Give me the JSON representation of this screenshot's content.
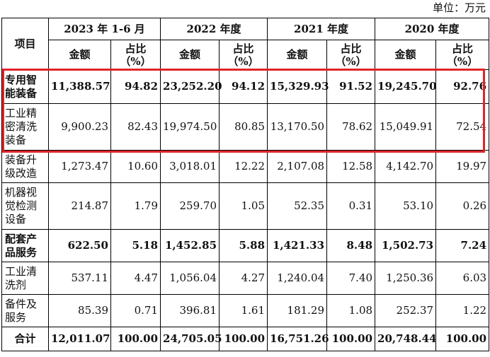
{
  "unit_label": "单位：万元",
  "header": {
    "item_label": "项目",
    "periods": [
      "2023 年 1-6 月",
      "2022 年度",
      "2021 年度",
      "2020 年度"
    ],
    "amount_label": "金额",
    "ratio_label_line1": "占比",
    "ratio_label_line2": "（%）"
  },
  "rows": [
    {
      "label": "专用智能装备",
      "bold": true,
      "values": [
        "11,388.57",
        "94.82",
        "23,252.20",
        "94.12",
        "15,329.93",
        "91.52",
        "19,245.70",
        "92.76"
      ]
    },
    {
      "label": "工业精密清洗装备",
      "bold": false,
      "values": [
        "9,900.23",
        "82.43",
        "19,974.50",
        "80.85",
        "13,170.50",
        "78.62",
        "15,049.91",
        "72.54"
      ]
    },
    {
      "label": "装备升级改造",
      "bold": false,
      "values": [
        "1,273.47",
        "10.60",
        "3,018.01",
        "12.22",
        "2,107.08",
        "12.58",
        "4,142.70",
        "19.97"
      ]
    },
    {
      "label": "机器视觉检测设备",
      "bold": false,
      "values": [
        "214.87",
        "1.79",
        "259.70",
        "1.05",
        "52.35",
        "0.31",
        "53.10",
        "0.26"
      ]
    },
    {
      "label": "配套产品服务",
      "bold": true,
      "values": [
        "622.50",
        "5.18",
        "1,452.85",
        "5.88",
        "1,421.33",
        "8.48",
        "1,502.73",
        "7.24"
      ]
    },
    {
      "label": "工业清洗剂",
      "bold": false,
      "values": [
        "537.11",
        "4.47",
        "1,056.04",
        "4.27",
        "1,240.04",
        "7.40",
        "1,250.36",
        "6.03"
      ]
    },
    {
      "label": "备件及服务",
      "bold": false,
      "values": [
        "85.39",
        "0.71",
        "396.81",
        "1.61",
        "181.29",
        "1.08",
        "252.37",
        "1.22"
      ]
    },
    {
      "label": "合计",
      "bold": true,
      "values": [
        "12,011.07",
        "100.00",
        "24,705.05",
        "100.00",
        "16,751.26",
        "100.00",
        "20,748.44",
        "100.00"
      ]
    }
  ],
  "highlight_color": "#e0242b"
}
